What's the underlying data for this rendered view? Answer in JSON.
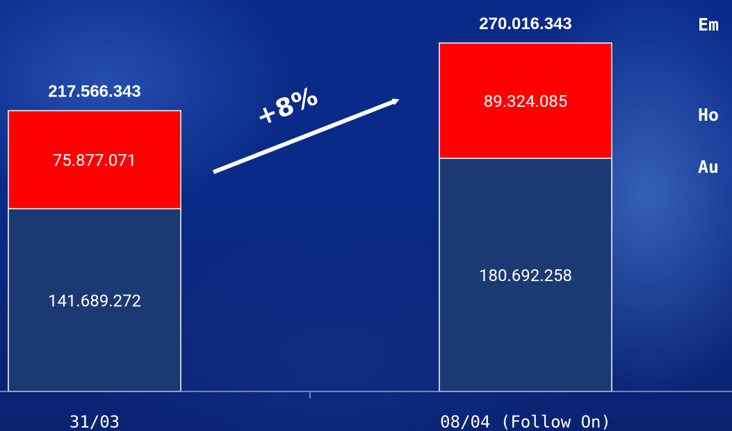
{
  "chart_data": {
    "type": "bar",
    "stacked": true,
    "categories": [
      "31/03",
      "08/04 (Follow On)"
    ],
    "series": [
      {
        "values": [
          141689272,
          180692258
        ],
        "labels": [
          "141.689.272",
          "180.692.258"
        ],
        "color": "#1b3a73"
      },
      {
        "values": [
          75877071,
          89324085
        ],
        "labels": [
          "75.877.071",
          "89.324.085"
        ],
        "color": "#ff0000"
      }
    ],
    "totals": [
      "217.566.343",
      "270.016.343"
    ],
    "total_values": [
      217566343,
      270016343
    ],
    "annotation": {
      "text": "+8%"
    },
    "legend_fragments": [
      "Em",
      "Ho",
      "Au"
    ]
  }
}
